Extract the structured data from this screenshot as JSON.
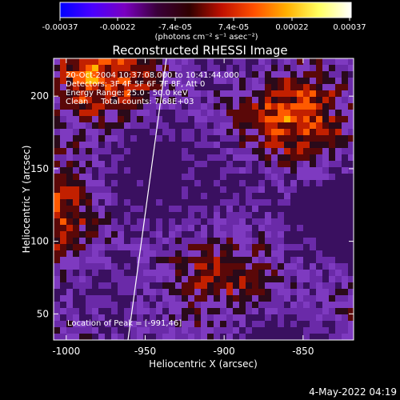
{
  "colorbar": {
    "ticks": [
      "-0.00037",
      "-0.00022",
      "-7.4e-05",
      "7.4e-05",
      "0.00022",
      "0.00037"
    ],
    "units": "(photons cm⁻² s⁻¹ asec⁻²)",
    "stops": [
      "#0000ff",
      "#4a00ff",
      "#7a00c0",
      "#3a003a",
      "#300000",
      "#c01000",
      "#ff5000",
      "#ffb000",
      "#ffff60",
      "#ffffff"
    ]
  },
  "title": "Reconstructed RHESSI Image",
  "info": {
    "line1": "20-Oct-2004 10:37:08.000 to 10:41:44.000",
    "line2": "Detectors: 3F 4F 5F 6F 7F 8F, Att 0",
    "line3": "Energy Range: 25.0 - 50.0 keV",
    "line4": "Clean     Total counts: 7.68E+03"
  },
  "peak_label": "Location of Peak = [-991,46]",
  "x_axis": {
    "label": "Heliocentric X (arcsec)",
    "ticks": [
      "-1000",
      "-950",
      "-900",
      "-850"
    ],
    "range": [
      -1008,
      -818
    ]
  },
  "y_axis": {
    "label": "Heliocentric Y (arcsec)",
    "ticks": [
      "50",
      "100",
      "150",
      "200"
    ],
    "range": [
      32,
      226
    ]
  },
  "timestamp": "4-May-2022 04:19"
}
